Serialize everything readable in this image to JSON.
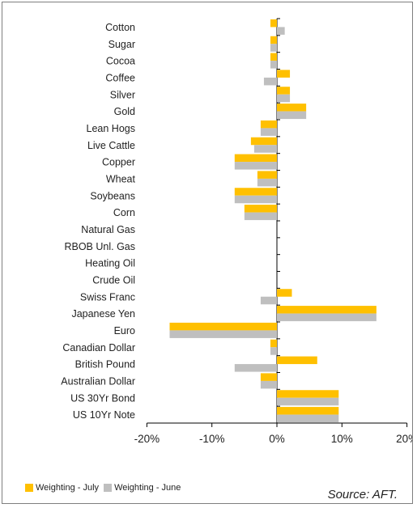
{
  "chart_data": {
    "type": "bar",
    "orientation": "horizontal",
    "categories": [
      "Cotton",
      "Sugar",
      "Cocoa",
      "Coffee",
      "Silver",
      "Gold",
      "Lean Hogs",
      "Live Cattle",
      "Copper",
      "Wheat",
      "Soybeans",
      "Corn",
      "Natural Gas",
      "RBOB Unl. Gas",
      "Heating Oil",
      "Crude Oil",
      "Swiss Franc",
      "Japanese Yen",
      "Euro",
      "Canadian Dollar",
      "British Pound",
      "Australian Dollar",
      "US 30Yr Bond",
      "US 10Yr Note"
    ],
    "series": [
      {
        "name": "Weighting - July",
        "color": "#ffc000",
        "values": [
          -1,
          -1,
          -1,
          2,
          2,
          4.5,
          -2.5,
          -4,
          -6.5,
          -3,
          -6.5,
          -5,
          0,
          0,
          0,
          0,
          2.3,
          15.3,
          -16.5,
          -1,
          6.2,
          -2.5,
          9.5,
          9.5
        ]
      },
      {
        "name": "Weighting - June",
        "color": "#bfbfbf",
        "values": [
          1.2,
          -1,
          -1,
          -2,
          2,
          4.5,
          -2.5,
          -3.5,
          -6.5,
          -3,
          -6.5,
          -5,
          0,
          0,
          0,
          0,
          -2.5,
          15.3,
          -16.5,
          -1,
          -6.5,
          -2.5,
          9.5,
          9.5
        ]
      }
    ],
    "xlim": [
      -20,
      20
    ],
    "xticks": [
      -20,
      -10,
      0,
      10,
      20
    ],
    "tick_labels": [
      "-20%",
      "-10%",
      "0%",
      "10%",
      "20%"
    ],
    "legend_position": "bottom-left",
    "source": "Source: AFT."
  }
}
